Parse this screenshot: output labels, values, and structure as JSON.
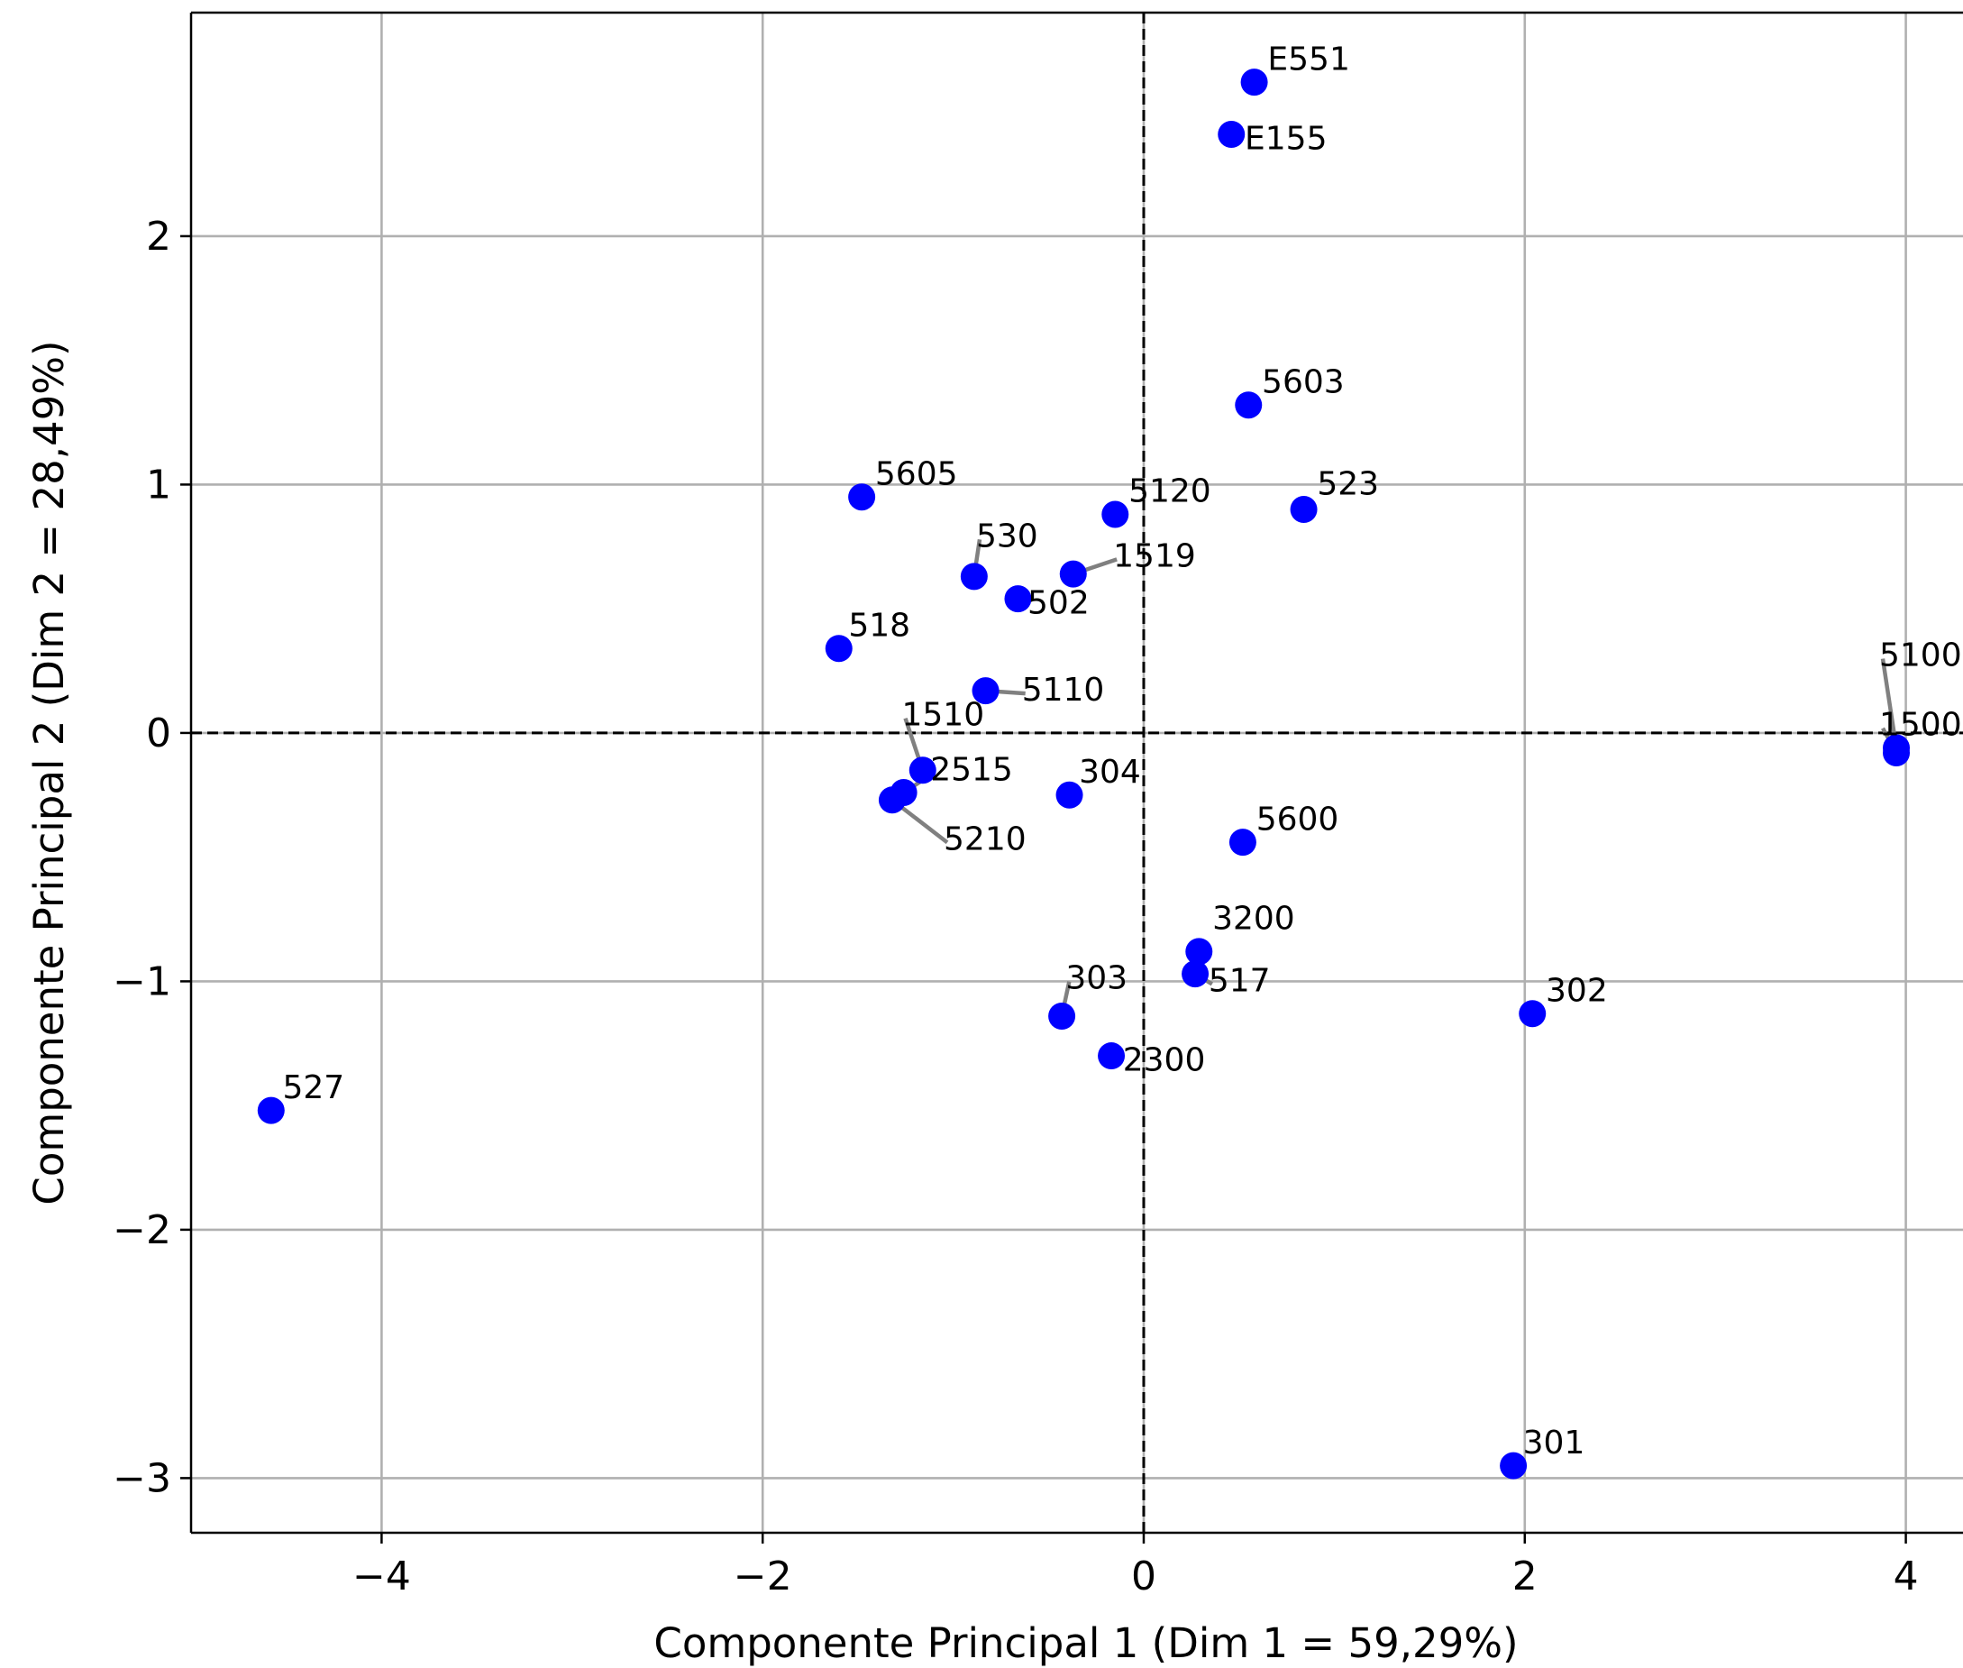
{
  "chart_data": {
    "type": "scatter",
    "xlabel": "Componente Principal 1 (Dim 1 = 59,29%)",
    "ylabel": "Componente Principal 2 (Dim 2 = 28,49%)",
    "xlim": [
      -5.0,
      4.3
    ],
    "ylim": [
      -3.22,
      2.9
    ],
    "x_ticks": [
      -4,
      -2,
      0,
      2,
      4
    ],
    "y_ticks": [
      -3,
      -2,
      -1,
      0,
      1,
      2
    ],
    "x_tick_labels": [
      "−4",
      "−2",
      "0",
      "2",
      "4"
    ],
    "y_tick_labels": [
      "−3",
      "−2",
      "−1",
      "0",
      "1",
      "2"
    ],
    "grid": true,
    "reference_lines": {
      "x": 0,
      "y": 0,
      "style": "dashed"
    },
    "point_color": "#0000ff",
    "grid_color": "#b0b0b0",
    "leader_color": "#808080",
    "points": [
      {
        "label": "E551",
        "x": 0.58,
        "y": 2.62,
        "label_x": 0.65,
        "label_y": 2.67,
        "leader": false
      },
      {
        "label": "E155",
        "x": 0.46,
        "y": 2.41,
        "label_x": 0.53,
        "label_y": 2.35,
        "leader": false
      },
      {
        "label": "5603",
        "x": 0.55,
        "y": 1.32,
        "label_x": 0.62,
        "label_y": 1.37,
        "leader": false
      },
      {
        "label": "523",
        "x": 0.84,
        "y": 0.9,
        "label_x": 0.91,
        "label_y": 0.96,
        "leader": false
      },
      {
        "label": "5605",
        "x": -1.48,
        "y": 0.95,
        "label_x": -1.41,
        "label_y": 1.0,
        "leader": false
      },
      {
        "label": "5120",
        "x": -0.15,
        "y": 0.88,
        "label_x": -0.08,
        "label_y": 0.93,
        "leader": false
      },
      {
        "label": "530",
        "x": -0.89,
        "y": 0.63,
        "label_x": -0.88,
        "label_y": 0.75,
        "leader": true
      },
      {
        "label": "1519",
        "x": -0.37,
        "y": 0.64,
        "label_x": -0.16,
        "label_y": 0.67,
        "leader": true
      },
      {
        "label": "502",
        "x": -0.66,
        "y": 0.54,
        "label_x": -0.61,
        "label_y": 0.48,
        "leader": false
      },
      {
        "label": "518",
        "x": -1.6,
        "y": 0.34,
        "label_x": -1.55,
        "label_y": 0.39,
        "leader": false
      },
      {
        "label": "5110",
        "x": -0.83,
        "y": 0.17,
        "label_x": -0.64,
        "label_y": 0.13,
        "leader": true
      },
      {
        "label": "5100",
        "x": 3.95,
        "y": -0.06,
        "label_x": 3.86,
        "label_y": 0.27,
        "leader": true
      },
      {
        "label": "1500",
        "x": 3.95,
        "y": -0.08,
        "label_x": 3.86,
        "label_y": -0.01,
        "leader": true
      },
      {
        "label": "1510",
        "x": -1.16,
        "y": -0.15,
        "label_x": -1.27,
        "label_y": 0.03,
        "leader": true
      },
      {
        "label": "2515",
        "x": -1.26,
        "y": -0.24,
        "label_x": -1.12,
        "label_y": -0.19,
        "leader": true
      },
      {
        "label": "5210",
        "x": -1.32,
        "y": -0.27,
        "label_x": -1.05,
        "label_y": -0.47,
        "leader": true
      },
      {
        "label": "304",
        "x": -0.39,
        "y": -0.25,
        "label_x": -0.34,
        "label_y": -0.2,
        "leader": false
      },
      {
        "label": "5600",
        "x": 0.52,
        "y": -0.44,
        "label_x": 0.59,
        "label_y": -0.39,
        "leader": false
      },
      {
        "label": "3200",
        "x": 0.29,
        "y": -0.88,
        "label_x": 0.36,
        "label_y": -0.79,
        "leader": false
      },
      {
        "label": "517",
        "x": 0.27,
        "y": -0.97,
        "label_x": 0.34,
        "label_y": -1.04,
        "leader": true
      },
      {
        "label": "303",
        "x": -0.43,
        "y": -1.14,
        "label_x": -0.41,
        "label_y": -1.03,
        "leader": true
      },
      {
        "label": "302",
        "x": 2.04,
        "y": -1.13,
        "label_x": 2.11,
        "label_y": -1.08,
        "leader": false
      },
      {
        "label": "2300",
        "x": -0.17,
        "y": -1.3,
        "label_x": -0.11,
        "label_y": -1.36,
        "leader": false
      },
      {
        "label": "527",
        "x": -4.58,
        "y": -1.52,
        "label_x": -4.52,
        "label_y": -1.47,
        "leader": false
      },
      {
        "label": "301",
        "x": 1.94,
        "y": -2.95,
        "label_x": 1.99,
        "label_y": -2.9,
        "leader": false
      }
    ]
  }
}
